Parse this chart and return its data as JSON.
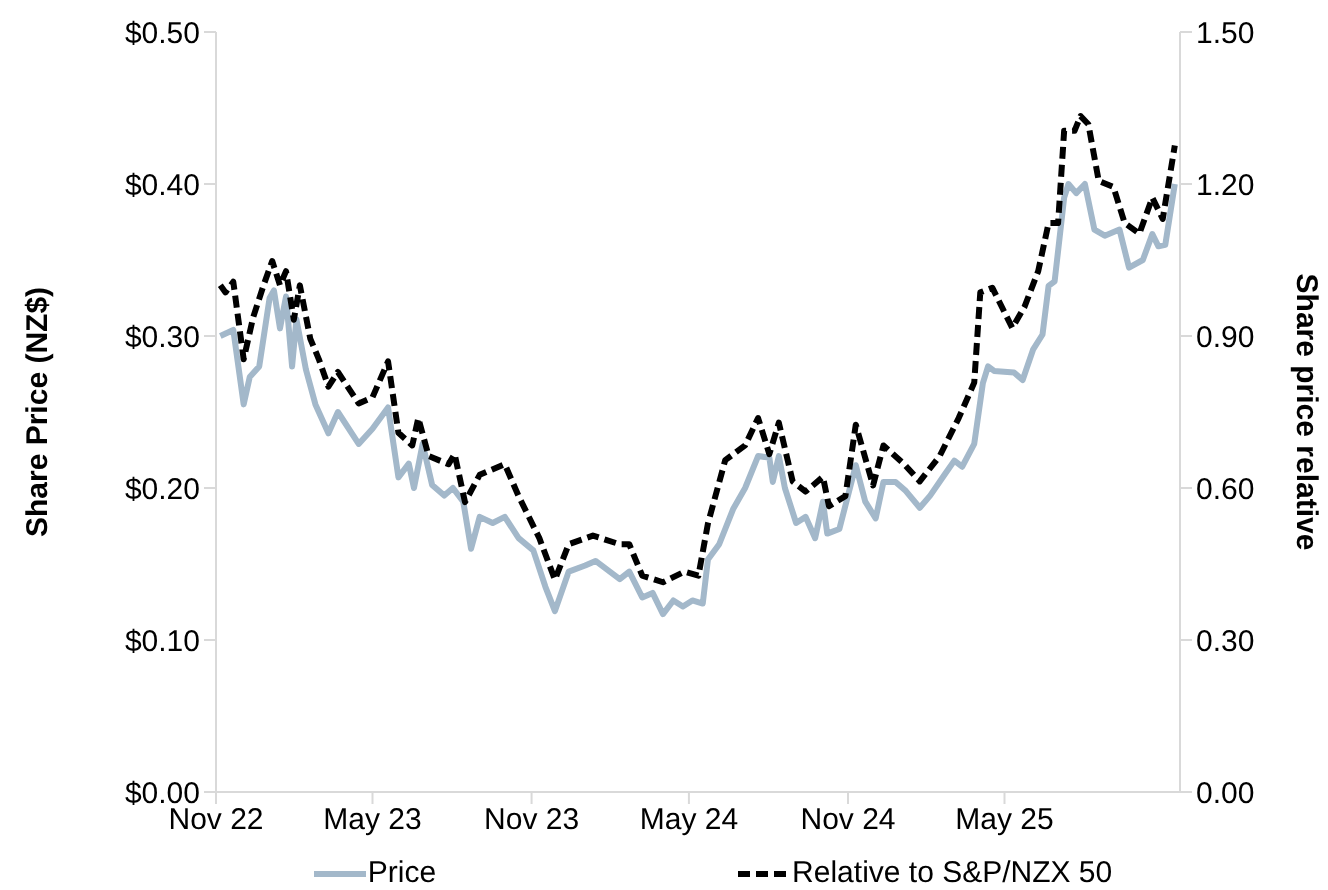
{
  "chart_data": {
    "type": "line",
    "ylabel": "Share Price (NZ$)",
    "y2label": "Share price relative",
    "xlim": [
      "2022-11-01",
      "2025-11-20"
    ],
    "xticks": [
      {
        "value": "2022-11-01",
        "label": "Nov 22"
      },
      {
        "value": "2023-05-01",
        "label": "May 23"
      },
      {
        "value": "2023-11-01",
        "label": "Nov 23"
      },
      {
        "value": "2024-05-01",
        "label": "May 24"
      },
      {
        "value": "2024-11-01",
        "label": "Nov 24"
      },
      {
        "value": "2025-05-01",
        "label": "May 25"
      }
    ],
    "ylim": [
      0,
      0.5
    ],
    "yticks": [
      {
        "value": 0,
        "label": "$0.00"
      },
      {
        "value": 0.1,
        "label": "$0.10"
      },
      {
        "value": 0.2,
        "label": "$0.20"
      },
      {
        "value": 0.3,
        "label": "$0.30"
      },
      {
        "value": 0.4,
        "label": "$0.40"
      },
      {
        "value": 0.5,
        "label": "$0.50"
      }
    ],
    "y2lim": [
      0,
      1.5
    ],
    "y2ticks": [
      {
        "value": 0,
        "label": "0.00"
      },
      {
        "value": 0.3,
        "label": "0.30"
      },
      {
        "value": 0.6,
        "label": "0.60"
      },
      {
        "value": 0.9,
        "label": "0.90"
      },
      {
        "value": 1.2,
        "label": "1.20"
      },
      {
        "value": 1.5,
        "label": "1.50"
      }
    ],
    "grid": false,
    "legend": "bottom",
    "marker": "none",
    "series": [
      {
        "name": "Price",
        "color": "#a3b8ca",
        "line_style": "solid",
        "x": [
          "2022-11-06",
          "2022-11-21",
          "2022-12-03",
          "2022-12-10",
          "2022-12-21",
          "2023-01-02",
          "2023-01-07",
          "2023-01-14",
          "2023-01-21",
          "2023-01-28",
          "2023-02-02",
          "2023-02-13",
          "2023-02-24",
          "2023-03-11",
          "2023-03-22",
          "2023-04-15",
          "2023-05-01",
          "2023-05-19",
          "2023-05-31",
          "2023-06-12",
          "2023-06-18",
          "2023-06-28",
          "2023-07-09",
          "2023-07-23",
          "2023-08-02",
          "2023-08-14",
          "2023-08-23",
          "2023-09-02",
          "2023-09-17",
          "2023-10-01",
          "2023-10-17",
          "2023-11-03",
          "2023-11-17",
          "2023-11-28",
          "2023-12-14",
          "2024-01-02",
          "2024-01-14",
          "2024-02-11",
          "2024-02-22",
          "2024-03-08",
          "2024-03-20",
          "2024-04-01",
          "2024-04-13",
          "2024-04-24",
          "2024-05-05",
          "2024-05-17",
          "2024-05-23",
          "2024-06-05",
          "2024-06-21",
          "2024-07-05",
          "2024-07-20",
          "2024-08-02",
          "2024-08-06",
          "2024-08-13",
          "2024-08-20",
          "2024-09-02",
          "2024-09-13",
          "2024-09-24",
          "2024-10-03",
          "2024-10-08",
          "2024-10-22",
          "2024-11-10",
          "2024-11-21",
          "2024-12-03",
          "2024-12-12",
          "2024-12-26",
          "2025-01-07",
          "2025-01-23",
          "2025-02-04",
          "2025-02-21",
          "2025-03-04",
          "2025-03-13",
          "2025-03-27",
          "2025-04-06",
          "2025-04-12",
          "2025-04-19",
          "2025-05-12",
          "2025-05-22",
          "2025-06-03",
          "2025-06-14",
          "2025-06-21",
          "2025-06-28",
          "2025-07-09",
          "2025-07-14",
          "2025-07-23",
          "2025-08-02",
          "2025-08-13",
          "2025-08-25",
          "2025-09-11",
          "2025-09-22",
          "2025-10-08",
          "2025-10-19",
          "2025-10-26",
          "2025-11-03",
          "2025-11-14"
        ],
        "values": [
          0.3,
          0.304,
          0.255,
          0.273,
          0.28,
          0.325,
          0.33,
          0.305,
          0.326,
          0.28,
          0.311,
          0.278,
          0.255,
          0.236,
          0.25,
          0.229,
          0.239,
          0.253,
          0.207,
          0.216,
          0.2,
          0.229,
          0.202,
          0.195,
          0.2,
          0.191,
          0.16,
          0.181,
          0.177,
          0.181,
          0.167,
          0.159,
          0.135,
          0.119,
          0.145,
          0.149,
          0.152,
          0.14,
          0.145,
          0.128,
          0.131,
          0.117,
          0.126,
          0.122,
          0.126,
          0.124,
          0.153,
          0.163,
          0.186,
          0.2,
          0.221,
          0.22,
          0.204,
          0.221,
          0.2,
          0.177,
          0.181,
          0.167,
          0.191,
          0.17,
          0.173,
          0.215,
          0.191,
          0.18,
          0.204,
          0.204,
          0.198,
          0.187,
          0.195,
          0.209,
          0.218,
          0.214,
          0.229,
          0.269,
          0.28,
          0.277,
          0.276,
          0.271,
          0.291,
          0.301,
          0.333,
          0.336,
          0.391,
          0.4,
          0.394,
          0.4,
          0.37,
          0.366,
          0.37,
          0.345,
          0.35,
          0.367,
          0.359,
          0.36,
          0.4
        ]
      },
      {
        "name": "Relative to S&P/NZX 50",
        "color": "#000000",
        "line_style": "dashed",
        "axis": "y2",
        "x": [
          "2022-11-06",
          "2022-11-12",
          "2022-11-21",
          "2022-12-03",
          "2022-12-14",
          "2022-12-26",
          "2023-01-05",
          "2023-01-14",
          "2023-01-21",
          "2023-01-30",
          "2023-02-06",
          "2023-02-18",
          "2023-02-28",
          "2023-03-11",
          "2023-03-22",
          "2023-04-15",
          "2023-05-01",
          "2023-05-19",
          "2023-05-31",
          "2023-06-16",
          "2023-06-23",
          "2023-07-05",
          "2023-07-28",
          "2023-08-04",
          "2023-08-16",
          "2023-09-02",
          "2023-10-01",
          "2023-10-17",
          "2023-11-10",
          "2023-11-28",
          "2023-12-14",
          "2024-01-11",
          "2024-02-11",
          "2024-02-22",
          "2024-03-08",
          "2024-04-01",
          "2024-04-26",
          "2024-05-12",
          "2024-05-23",
          "2024-06-12",
          "2024-07-05",
          "2024-07-20",
          "2024-08-02",
          "2024-08-13",
          "2024-08-29",
          "2024-09-13",
          "2024-10-03",
          "2024-10-10",
          "2024-10-29",
          "2024-11-10",
          "2024-11-30",
          "2024-12-12",
          "2025-01-05",
          "2025-01-23",
          "2025-02-15",
          "2025-03-09",
          "2025-03-27",
          "2025-04-03",
          "2025-04-17",
          "2025-05-10",
          "2025-05-24",
          "2025-06-09",
          "2025-06-21",
          "2025-07-02",
          "2025-07-09",
          "2025-07-21",
          "2025-07-28",
          "2025-08-06",
          "2025-08-18",
          "2025-09-04",
          "2025-09-17",
          "2025-10-04",
          "2025-10-19",
          "2025-10-31",
          "2025-11-14"
        ],
        "values": [
          1.0,
          0.986,
          1.007,
          0.854,
          0.937,
          1.0,
          1.048,
          1.0,
          1.028,
          0.932,
          1.0,
          0.895,
          0.854,
          0.8,
          0.829,
          0.767,
          0.779,
          0.85,
          0.709,
          0.684,
          0.738,
          0.663,
          0.647,
          0.667,
          0.572,
          0.626,
          0.647,
          0.584,
          0.501,
          0.419,
          0.489,
          0.506,
          0.489,
          0.489,
          0.427,
          0.414,
          0.435,
          0.427,
          0.53,
          0.655,
          0.684,
          0.738,
          0.667,
          0.729,
          0.613,
          0.593,
          0.622,
          0.564,
          0.584,
          0.725,
          0.605,
          0.684,
          0.647,
          0.613,
          0.663,
          0.738,
          0.808,
          0.986,
          0.995,
          0.916,
          0.957,
          1.028,
          1.123,
          1.123,
          1.305,
          1.305,
          1.334,
          1.318,
          1.206,
          1.194,
          1.123,
          1.102,
          1.173,
          1.131,
          1.276
        ]
      }
    ]
  }
}
